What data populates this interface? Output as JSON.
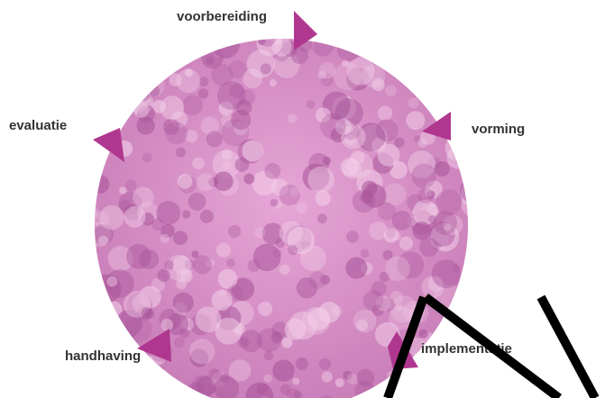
{
  "stages": [
    "voorbereiding",
    "vorming",
    "implementatie",
    "handhaving",
    "evaluatie"
  ]
}
